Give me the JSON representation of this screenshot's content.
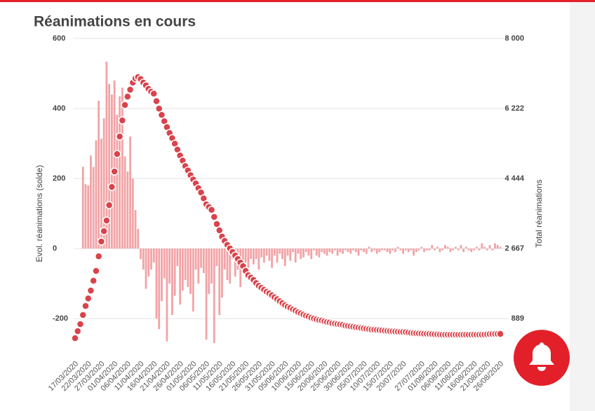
{
  "chart_data": {
    "type": "combo",
    "title": "Réanimations en cours",
    "y_label": "Evol. réanimations (solde)",
    "y2_label": "Total réanimations",
    "ylim": [
      -300,
      600
    ],
    "yticks": [
      -200,
      0,
      200,
      400,
      600
    ],
    "y2lim": [
      0,
      8000
    ],
    "y2ticks": [
      {
        "value": 889,
        "label": "889"
      },
      {
        "value": 2667,
        "label": "2 667"
      },
      {
        "value": 4444,
        "label": "4 444"
      },
      {
        "value": 6222,
        "label": "6 222"
      },
      {
        "value": 8000,
        "label": "8 000"
      }
    ],
    "grid": true,
    "categories": [
      "17/03/2020",
      null,
      null,
      null,
      null,
      "22/03/2020",
      null,
      null,
      null,
      null,
      "27/03/2020",
      null,
      null,
      null,
      null,
      "01/04/2020",
      null,
      null,
      null,
      null,
      "06/04/2020",
      null,
      null,
      null,
      null,
      "11/04/2020",
      null,
      null,
      null,
      null,
      "16/04/2020",
      null,
      null,
      null,
      null,
      "21/04/2020",
      null,
      null,
      null,
      null,
      "26/04/2020",
      null,
      null,
      null,
      null,
      "01/05/2020",
      null,
      null,
      null,
      null,
      "06/05/2020",
      null,
      null,
      null,
      null,
      "11/05/2020",
      null,
      null,
      null,
      null,
      "16/05/2020",
      null,
      null,
      null,
      null,
      "21/05/2020",
      null,
      null,
      null,
      null,
      "26/05/2020",
      null,
      null,
      null,
      null,
      "31/05/2020",
      null,
      null,
      null,
      null,
      "05/06/2020",
      null,
      null,
      null,
      null,
      "10/06/2020",
      null,
      null,
      null,
      null,
      "15/06/2020",
      null,
      null,
      null,
      null,
      "20/06/2020",
      null,
      null,
      null,
      null,
      "25/06/2020",
      null,
      null,
      null,
      null,
      "30/06/2020",
      null,
      null,
      null,
      null,
      "05/07/2020",
      null,
      null,
      null,
      null,
      "10/07/2020",
      null,
      null,
      null,
      null,
      "15/07/2020",
      null,
      null,
      null,
      null,
      "20/07/2020",
      null,
      null,
      null,
      null,
      null,
      null,
      "27/07/2020",
      null,
      null,
      null,
      null,
      "01/08/2020",
      null,
      null,
      null,
      null,
      "06/08/2020",
      null,
      null,
      null,
      null,
      "11/08/2020",
      null,
      null,
      null,
      null,
      "16/08/2020",
      null,
      null,
      null,
      null,
      "21/08/2020",
      null,
      null,
      null,
      null,
      "26/08/2020"
    ],
    "series": [
      {
        "type": "bar",
        "color": "#f2a3a6",
        "values": [
          null,
          null,
          null,
          234,
          184,
          180,
          266,
          233,
          309,
          422,
          314,
          372,
          534,
          470,
          440,
          480,
          382,
          435,
          460,
          263,
          220,
          320,
          200,
          110,
          56,
          -30,
          -60,
          -115,
          -80,
          -60,
          -40,
          -200,
          -230,
          -150,
          -85,
          -265,
          -100,
          -190,
          -135,
          -50,
          -160,
          -120,
          -90,
          -110,
          -130,
          -180,
          -60,
          -100,
          -55,
          -70,
          -260,
          -130,
          -100,
          -270,
          -50,
          -190,
          -140,
          -60,
          -90,
          -100,
          -30,
          -80,
          -60,
          -110,
          -70,
          -40,
          -55,
          -30,
          -45,
          -30,
          -60,
          -25,
          -40,
          -20,
          -35,
          -55,
          -20,
          -40,
          -15,
          -30,
          -50,
          -20,
          -35,
          -10,
          -40,
          -15,
          -30,
          -25,
          -10,
          -20,
          -30,
          -5,
          -20,
          -25,
          -10,
          -15,
          -20,
          -10,
          -15,
          -5,
          -20,
          -10,
          -15,
          -5,
          -10,
          -15,
          -5,
          -10,
          -20,
          -5,
          -10,
          -15,
          5,
          -10,
          -5,
          -15,
          -10,
          -5,
          -5,
          -10,
          -15,
          -5,
          -10,
          5,
          -5,
          -15,
          -5,
          -10,
          -5,
          -20,
          -10,
          -5,
          5,
          -10,
          -5,
          -5,
          10,
          -5,
          5,
          -10,
          -5,
          10,
          5,
          -10,
          -5,
          5,
          -5,
          10,
          -10,
          5,
          -5,
          -10,
          -5,
          5,
          -5,
          15,
          5,
          -5,
          10,
          -5,
          15,
          10,
          5
        ]
      },
      {
        "type": "line",
        "axis": "y2",
        "color": "#d9434b",
        "values": [
          391,
          570,
          747,
          980,
          1209,
          1400,
          1600,
          1850,
          2098,
          2470,
          2845,
          3110,
          3378,
          3769,
          4231,
          4622,
          5067,
          5511,
          5920,
          6311,
          6525,
          6700,
          6880,
          6987,
          7020,
          6970,
          6880,
          6810,
          6720,
          6650,
          6600,
          6410,
          6220,
          6060,
          5900,
          5750,
          5600,
          5470,
          5330,
          5180,
          5030,
          4900,
          4760,
          4650,
          4530,
          4420,
          4320,
          4200,
          4090,
          3940,
          3790,
          3720,
          3650,
          3470,
          3290,
          3130,
          2970,
          2860,
          2760,
          2670,
          2580,
          2490,
          2400,
          2310,
          2220,
          2100,
          1990,
          1930,
          1870,
          1790,
          1720,
          1670,
          1620,
          1570,
          1530,
          1480,
          1430,
          1380,
          1330,
          1280,
          1230,
          1190,
          1160,
          1120,
          1090,
          1050,
          1020,
          990,
          960,
          940,
          910,
          890,
          870,
          850,
          840,
          820,
          800,
          790,
          770,
          760,
          750,
          740,
          730,
          710,
          700,
          690,
          680,
          670,
          660,
          650,
          640,
          630,
          620,
          610,
          605,
          600,
          595,
          590,
          580,
          575,
          570,
          565,
          560,
          555,
          552,
          550,
          545,
          535,
          525,
          520,
          515,
          512,
          508,
          505,
          502,
          500,
          495,
          490,
          486,
          483,
          480,
          480,
          480,
          480,
          480,
          480,
          480,
          480,
          480,
          480,
          480,
          480,
          480,
          480,
          480,
          480,
          485,
          490,
          495,
          498,
          500,
          500,
          500
        ]
      }
    ]
  }
}
